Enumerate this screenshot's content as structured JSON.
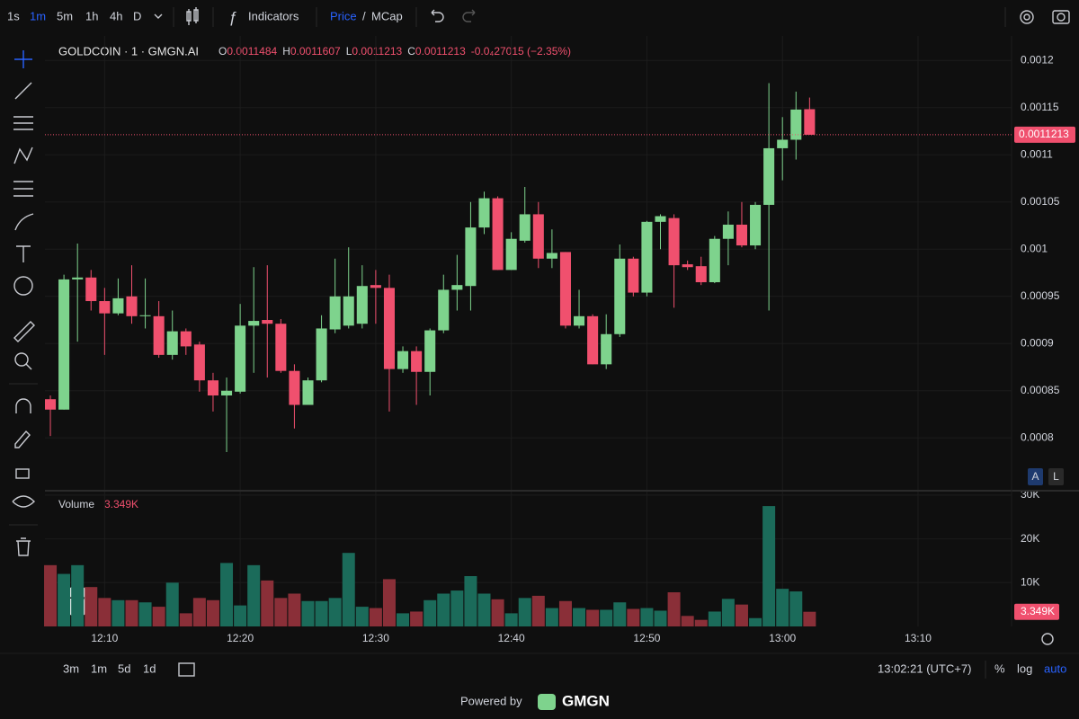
{
  "toolbar": {
    "intervals": [
      "1s",
      "1m",
      "5m",
      "1h",
      "4h",
      "D"
    ],
    "indicators": "Indicators",
    "price": "Price",
    "slash": "/",
    "mcap": "MCap"
  },
  "scale_buttons": [
    "A",
    "L"
  ],
  "bottom": {
    "ranges": [
      "3m",
      "1m",
      "5d",
      "1d"
    ],
    "clock": "13:02:21 (UTC+7)",
    "percent": "%",
    "log": "log",
    "auto": "auto"
  },
  "footer": {
    "powered": "Powered by",
    "brand": "GMGN"
  },
  "chart_data": {
    "type": "candlestick",
    "title": "GOLDCOIN · 1 · GMGN.AI",
    "ohlc_prefixes": [
      "O",
      "H",
      "L",
      "C"
    ],
    "change": "-0.0₄27015 (−2.35%)",
    "x": [
      6,
      7,
      8,
      9,
      10,
      11,
      12,
      13,
      14,
      15,
      16,
      17,
      18,
      19,
      20,
      21,
      22,
      23,
      24,
      25,
      26,
      27,
      28,
      29,
      30,
      31,
      32,
      33,
      34,
      35,
      36,
      37,
      38,
      39,
      40,
      41,
      42,
      43,
      44,
      45,
      46,
      47,
      48,
      49,
      50,
      51,
      52,
      53,
      54,
      55,
      56,
      57,
      58,
      59,
      60,
      61,
      62
    ],
    "open": [
      0.000841,
      0.00083,
      0.000968,
      0.00097,
      0.000945,
      0.000932,
      0.00095,
      0.000929,
      0.000929,
      0.000888,
      0.000913,
      0.000899,
      0.000861,
      0.000845,
      0.000849,
      0.000919,
      0.000925,
      0.000921,
      0.000871,
      0.000835,
      0.000861,
      0.000915,
      0.000919,
      0.000921,
      0.000962,
      0.000959,
      0.000873,
      0.000892,
      0.00087,
      0.000914,
      0.000957,
      0.000961,
      0.001023,
      0.001054,
      0.000978,
      0.001009,
      0.001037,
      0.00099,
      0.000997,
      0.000919,
      0.000929,
      0.000878,
      0.00091,
      0.00099,
      0.000954,
      0.001029,
      0.001033,
      0.000984,
      0.000982,
      0.000965,
      0.001011,
      0.001026,
      0.001004,
      0.001047,
      0.001107,
      0.001116,
      0.0011484
    ],
    "high": [
      0.000845,
      0.000973,
      0.001006,
      0.000978,
      0.000959,
      0.000969,
      0.000983,
      0.000969,
      0.000945,
      0.000935,
      0.000916,
      0.000902,
      0.000869,
      0.000864,
      0.000942,
      0.000981,
      0.000983,
      0.000926,
      0.000878,
      0.000864,
      0.00093,
      0.00099,
      0.001002,
      0.000983,
      0.000978,
      0.000973,
      0.000897,
      0.000897,
      0.000916,
      0.000973,
      0.000994,
      0.00105,
      0.001061,
      0.001056,
      0.001018,
      0.001066,
      0.00105,
      0.001021,
      0.000997,
      0.000957,
      0.000931,
      0.000931,
      0.001005,
      0.000992,
      0.00103,
      0.001037,
      0.001037,
      0.000988,
      0.000992,
      0.001014,
      0.00104,
      0.00105,
      0.00105,
      0.001176,
      0.00114,
      0.001167,
      0.0011607
    ],
    "low": [
      0.000802,
      0.00083,
      0.000902,
      0.000935,
      0.000888,
      0.00093,
      0.000921,
      0.000916,
      0.000885,
      0.000883,
      0.000888,
      0.000849,
      0.000828,
      0.000785,
      0.000847,
      0.000869,
      0.000864,
      0.000869,
      0.00081,
      0.000835,
      0.000859,
      0.000911,
      0.000916,
      0.000916,
      0.000921,
      0.000828,
      0.000869,
      0.000835,
      0.000845,
      0.000911,
      0.000935,
      0.000935,
      0.001016,
      0.000978,
      0.000978,
      0.001007,
      0.00098,
      0.00098,
      0.000916,
      0.000916,
      0.000878,
      0.000873,
      0.000907,
      0.00095,
      0.00095,
      0.001,
      0.000938,
      0.000978,
      0.000962,
      0.000964,
      0.000983,
      0.001002,
      0.001,
      0.000935,
      0.001073,
      0.001095,
      0.0011213
    ],
    "close": [
      0.00083,
      0.000968,
      0.00097,
      0.000945,
      0.000932,
      0.000948,
      0.000929,
      0.00093,
      0.000888,
      0.000913,
      0.000897,
      0.000861,
      0.000845,
      0.00085,
      0.000919,
      0.000924,
      0.000921,
      0.000871,
      0.000835,
      0.000861,
      0.000916,
      0.00095,
      0.00095,
      0.000961,
      0.000959,
      0.000873,
      0.000892,
      0.00087,
      0.000914,
      0.000957,
      0.000962,
      0.001023,
      0.001054,
      0.000978,
      0.001011,
      0.001037,
      0.00099,
      0.000996,
      0.000919,
      0.000929,
      0.000878,
      0.00091,
      0.00099,
      0.000954,
      0.001029,
      0.001035,
      0.000983,
      0.000981,
      0.000965,
      0.001011,
      0.001026,
      0.001004,
      0.001047,
      0.001107,
      0.001116,
      0.001148,
      0.0011213
    ],
    "up_color": "#7ed38d",
    "down_color": "#f0506e",
    "ylim": [
      0.000745,
      0.001226
    ],
    "yticks": [
      0.0008,
      0.00085,
      0.0009,
      0.00095,
      0.001,
      0.00105,
      0.0011,
      0.00115,
      0.0012
    ],
    "xlim": [
      5.6,
      76.9
    ],
    "xticks": [
      {
        "value": 10,
        "label": "12:10"
      },
      {
        "value": 20,
        "label": "12:20"
      },
      {
        "value": 30,
        "label": "12:30"
      },
      {
        "value": 40,
        "label": "12:40"
      },
      {
        "value": 50,
        "label": "12:50"
      },
      {
        "value": 60,
        "label": "13:00"
      },
      {
        "value": 70,
        "label": "13:10"
      }
    ],
    "grid": true,
    "volume": {
      "name": "Volume",
      "up_color": "#1b6b5a",
      "down_color": "#8a2f38",
      "values": [
        14000,
        12000,
        14000,
        9000,
        6500,
        6000,
        6000,
        5500,
        4500,
        10000,
        3000,
        6500,
        6000,
        14500,
        4800,
        14000,
        10500,
        6500,
        7500,
        5800,
        5800,
        6500,
        16800,
        4500,
        4200,
        10800,
        3000,
        3400,
        6000,
        7500,
        8200,
        11500,
        7500,
        6200,
        3000,
        6500,
        7000,
        4200,
        5800,
        4200,
        3800,
        3800,
        5500,
        4000,
        4200,
        3600,
        7800,
        2400,
        1500,
        3400,
        6300,
        5000,
        1900,
        27500,
        8600,
        8000,
        3349
      ],
      "last_label": "3.349K",
      "ylim": [
        0,
        30600
      ],
      "yticks": [
        {
          "value": 10000,
          "label": "10K"
        },
        {
          "value": 20000,
          "label": "20K"
        },
        {
          "value": 30000,
          "label": "30K"
        }
      ]
    }
  }
}
